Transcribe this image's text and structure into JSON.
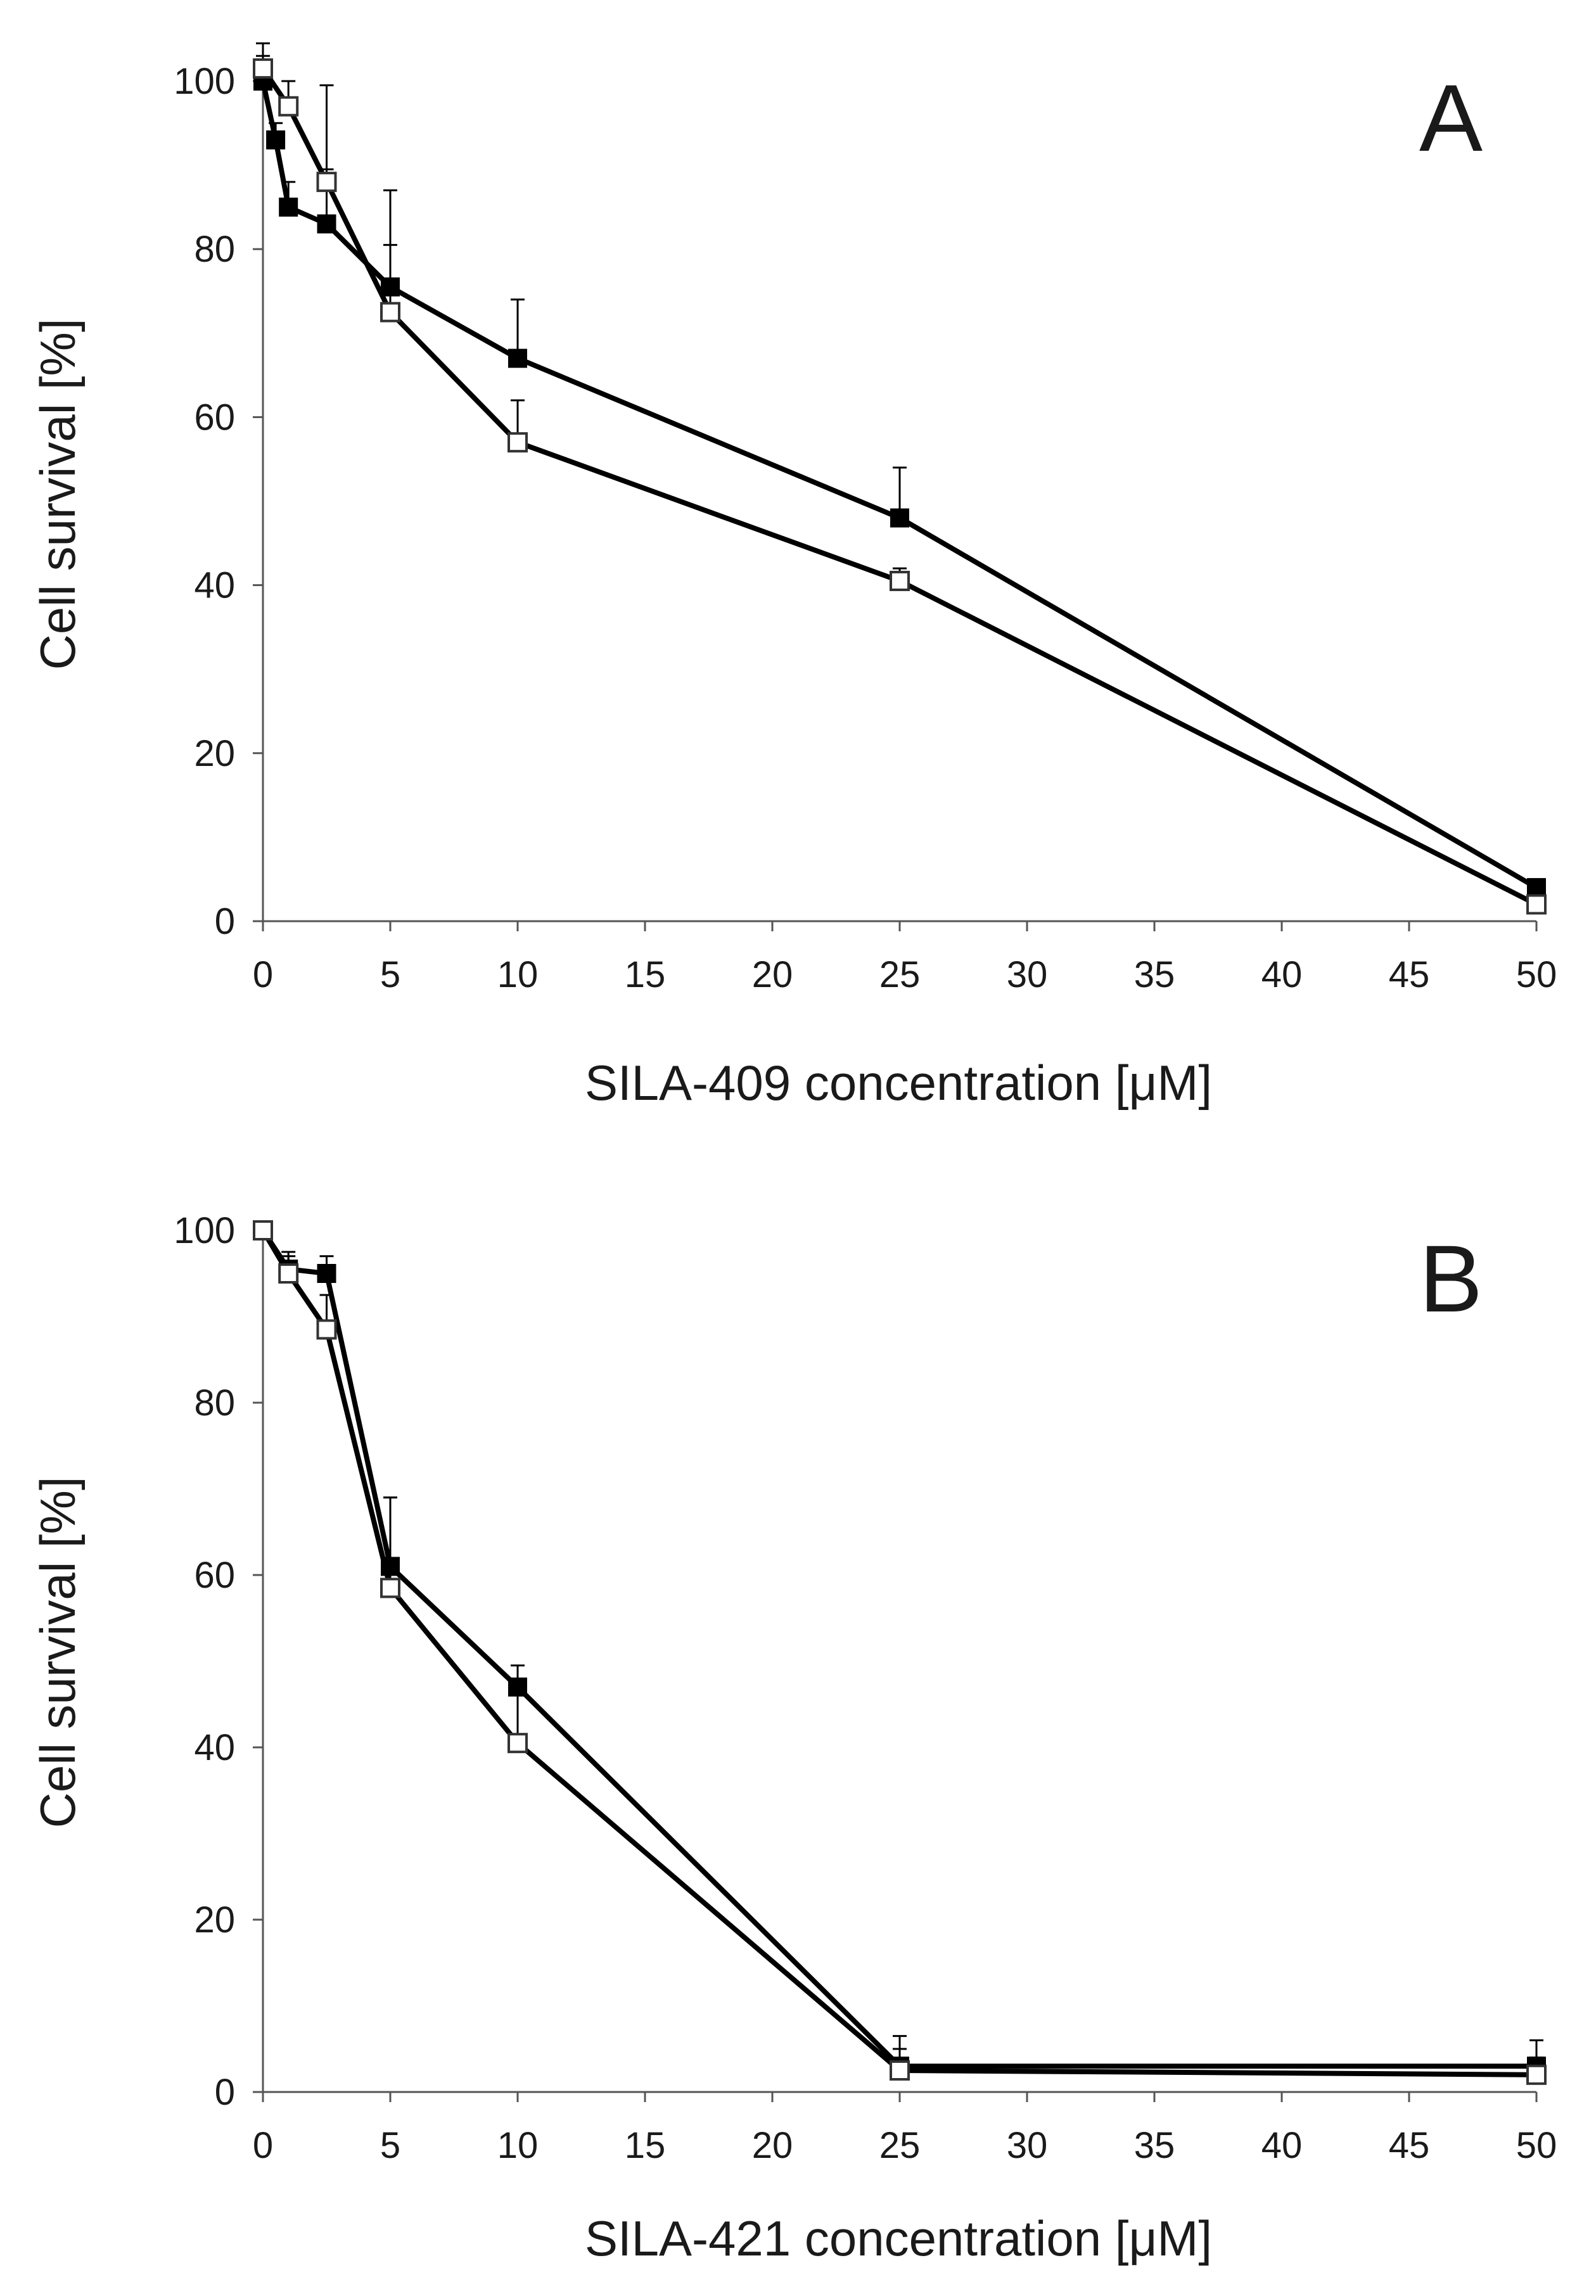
{
  "chart_data": [
    {
      "type": "line",
      "panel_label": "A",
      "xlabel": "SILA-409 concentration [μM]",
      "ylabel": "Cell survival [%]",
      "xlim": [
        0,
        50
      ],
      "ylim": [
        0,
        100
      ],
      "x_ticks": [
        "0",
        "5",
        "10",
        "15",
        "20",
        "25",
        "30",
        "35",
        "40",
        "45",
        "50"
      ],
      "y_ticks": [
        "0",
        "20",
        "40",
        "60",
        "80",
        "100"
      ],
      "grid": false,
      "legend": "none",
      "series": [
        {
          "marker": "filled-square",
          "color": "#000000",
          "x": [
            0,
            0.5,
            1,
            2.5,
            5,
            10,
            25,
            50
          ],
          "y": [
            100,
            93,
            85,
            83,
            75.5,
            67,
            48,
            4
          ],
          "err": [
            3,
            2,
            3,
            6.5,
            11.5,
            7,
            6,
            1
          ]
        },
        {
          "marker": "open-square",
          "color": "#000000",
          "x": [
            0,
            1,
            2.5,
            5,
            10,
            25,
            50
          ],
          "y": [
            101.5,
            97,
            88,
            72.5,
            57,
            40.5,
            2
          ],
          "err": [
            3,
            3,
            11.5,
            8,
            5,
            1.5,
            0.5
          ]
        }
      ]
    },
    {
      "type": "line",
      "panel_label": "B",
      "xlabel": "SILA-421 concentration [μM]",
      "ylabel": "Cell survival [%]",
      "xlim": [
        0,
        50
      ],
      "ylim": [
        0,
        100
      ],
      "x_ticks": [
        "0",
        "5",
        "10",
        "15",
        "20",
        "25",
        "30",
        "35",
        "40",
        "45",
        "50"
      ],
      "y_ticks": [
        "0",
        "20",
        "40",
        "60",
        "80",
        "100"
      ],
      "grid": false,
      "legend": "none",
      "series": [
        {
          "marker": "filled-square",
          "color": "#000000",
          "x": [
            0,
            1,
            2.5,
            5,
            10,
            25,
            50
          ],
          "y": [
            100,
            95.5,
            95,
            61,
            47,
            3,
            3
          ],
          "err": [
            0.5,
            2,
            2,
            8,
            2.5,
            3.5,
            3
          ]
        },
        {
          "marker": "open-square",
          "color": "#000000",
          "x": [
            0,
            1,
            2.5,
            5,
            10,
            25,
            50
          ],
          "y": [
            100,
            95,
            88.5,
            58.5,
            40.5,
            2.5,
            2
          ],
          "err": [
            0.5,
            2,
            4,
            10.5,
            7,
            2.5,
            2
          ]
        }
      ]
    }
  ]
}
